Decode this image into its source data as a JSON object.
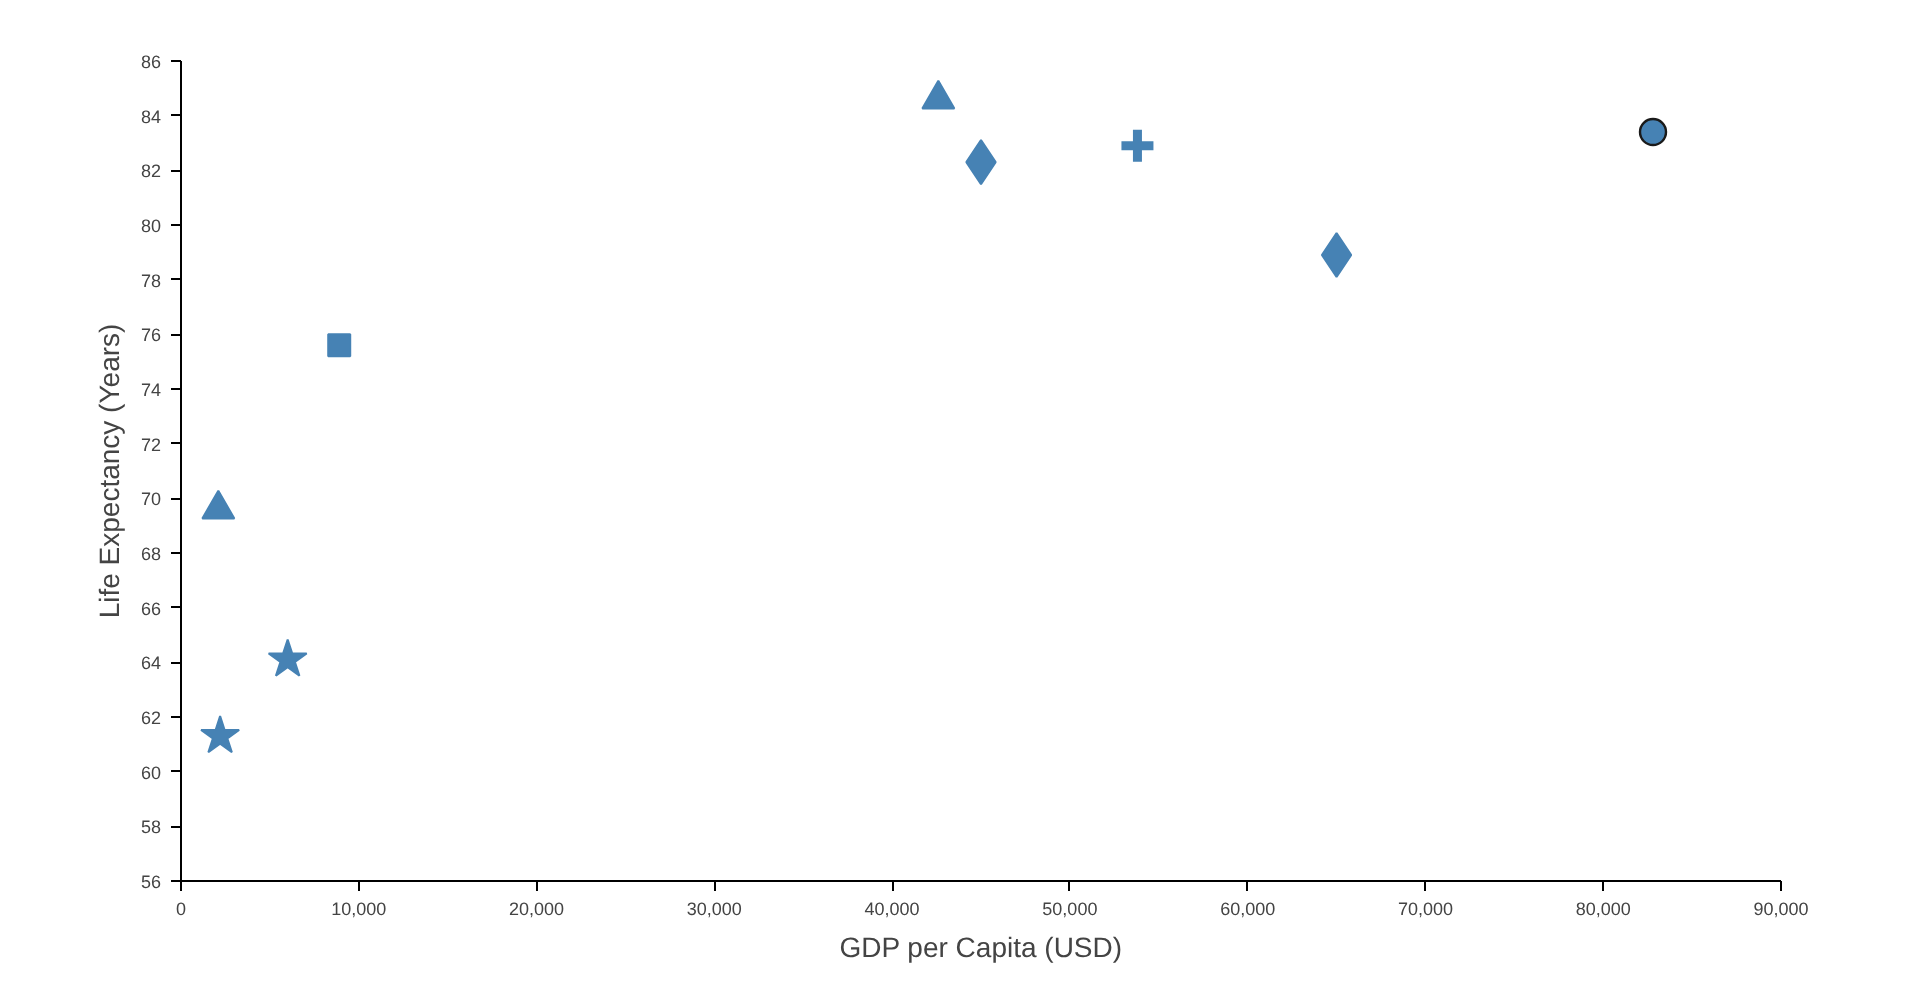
{
  "chart_data": {
    "type": "scatter",
    "xlabel": "GDP per Capita (USD)",
    "ylabel": "Life Expectancy (Years)",
    "xlim": [
      0,
      90000
    ],
    "ylim": [
      56,
      86
    ],
    "xticks": [
      0,
      {
        "value": 10000,
        "label": "10,000"
      },
      {
        "value": 20000,
        "label": "20,000"
      },
      {
        "value": 30000,
        "label": "30,000"
      },
      {
        "value": 40000,
        "label": "40,000"
      },
      {
        "value": 50000,
        "label": "50,000"
      },
      {
        "value": 60000,
        "label": "60,000"
      },
      {
        "value": 70000,
        "label": "70,000"
      },
      {
        "value": 80000,
        "label": "80,000"
      },
      {
        "value": 90000,
        "label": "90,000"
      }
    ],
    "yticks": [
      56,
      58,
      60,
      62,
      64,
      66,
      68,
      70,
      72,
      74,
      76,
      78,
      80,
      82,
      84,
      86
    ],
    "grid": false,
    "series": [
      {
        "marker": "triangle",
        "color": "#4682b4",
        "x": [
          2100,
          42600
        ],
        "values": [
          69.6,
          84.6
        ]
      },
      {
        "marker": "star",
        "color": "#4682b4",
        "x": [
          2200,
          6000
        ],
        "values": [
          61.3,
          64.1
        ]
      },
      {
        "marker": "square",
        "color": "#4682b4",
        "x": [
          8900
        ],
        "values": [
          75.6
        ]
      },
      {
        "marker": "diamond",
        "color": "#4682b4",
        "x": [
          45000,
          65000
        ],
        "values": [
          82.3,
          78.9
        ]
      },
      {
        "marker": "cross",
        "color": "#4682b4",
        "x": [
          53800
        ],
        "values": [
          82.9
        ]
      },
      {
        "marker": "circle",
        "color": "#4682b4",
        "x": [
          82800
        ],
        "values": [
          83.4
        ]
      }
    ]
  }
}
